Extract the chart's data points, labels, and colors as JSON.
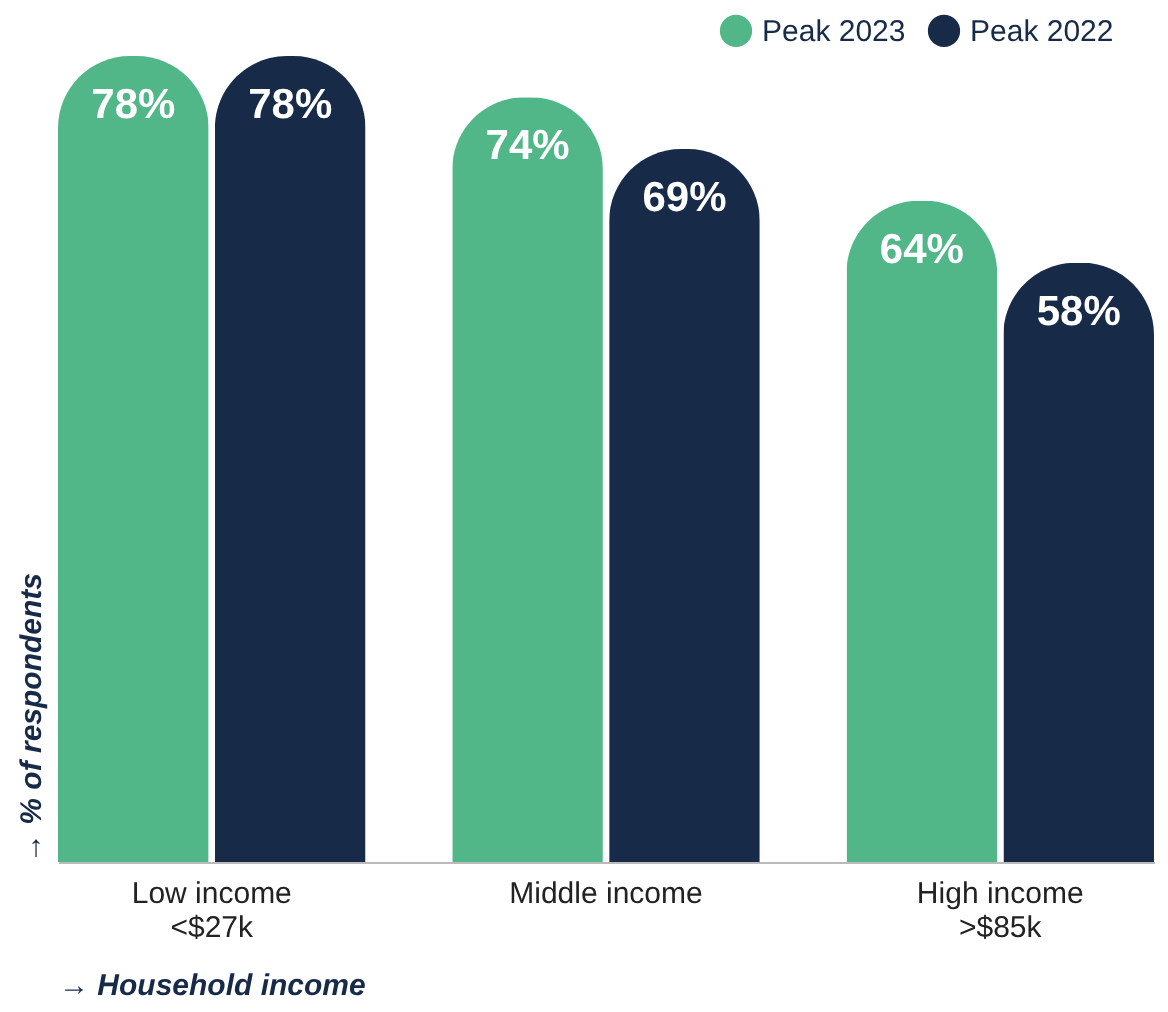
{
  "chart_data": {
    "type": "bar",
    "categories": [
      "Low income\n<$27k",
      "Middle income",
      "High income\n>$85k"
    ],
    "series": [
      {
        "name": "Peak 2023",
        "color": "#52b788",
        "values": [
          78,
          74,
          64
        ],
        "value_labels": [
          "78%",
          "74%",
          "64%"
        ]
      },
      {
        "name": "Peak 2022",
        "color": "#172a48",
        "values": [
          78,
          69,
          58
        ],
        "value_labels": [
          "78%",
          "69%",
          "58%"
        ]
      }
    ],
    "ylim": [
      0,
      78
    ],
    "xlabel": "→ Household income",
    "ylabel": "→ % of respondents",
    "legend": "top right",
    "grid": false
  }
}
